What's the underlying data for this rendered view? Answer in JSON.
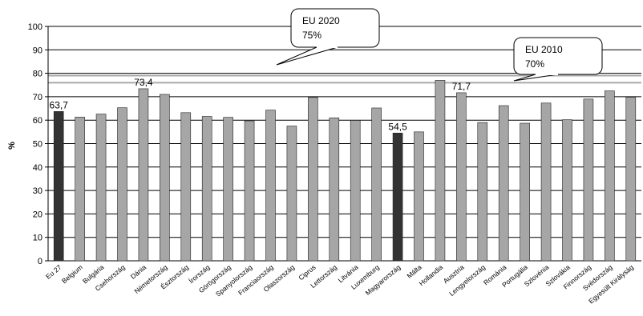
{
  "chart_data": {
    "type": "bar",
    "ylabel": "%",
    "ylim": [
      0,
      100
    ],
    "yticks": [
      0,
      10,
      20,
      30,
      40,
      50,
      60,
      70,
      80,
      90,
      100
    ],
    "grid": "horizontal",
    "categories": [
      "Eu 27",
      "Belgium",
      "Bulgária",
      "Csehország",
      "Dánia",
      "Németország",
      "Észtország",
      "Írország",
      "Görögország",
      "Spanyolország",
      "Franciaország",
      "Olaszország",
      "Ciprus",
      "Lettország",
      "Litvánia",
      "Luxemburg",
      "Magyarország",
      "Málta",
      "Hollandia",
      "Ausztria",
      "Lengyelország",
      "Románia",
      "Portugália",
      "Szlovénia",
      "Szlovákia",
      "Finnország",
      "Svédország",
      "Egyesült Királyság"
    ],
    "values": [
      63.7,
      61.3,
      62.6,
      65.3,
      73.4,
      71.0,
      63.2,
      61.6,
      61.2,
      59.7,
      64.3,
      57.5,
      69.7,
      61.0,
      59.9,
      65.2,
      54.5,
      55.0,
      77.0,
      71.7,
      59.0,
      66.2,
      58.7,
      67.3,
      60.2,
      69.0,
      72.5,
      69.8
    ],
    "highlight_categories": [
      "Eu 27",
      "Magyarország"
    ],
    "data_labels": [
      {
        "category": "Eu 27",
        "text": "63,7"
      },
      {
        "category": "Dánia",
        "text": "73,4"
      },
      {
        "category": "Magyarország",
        "text": "54,5"
      },
      {
        "category": "Ausztria",
        "text": "71,7"
      }
    ],
    "reference_lines": [
      {
        "value": 76,
        "color": "#aaaaaa"
      },
      {
        "value": 79,
        "color": "#aaaaaa"
      }
    ],
    "annotations": [
      {
        "line1": "EU 2020",
        "line2": "75%"
      },
      {
        "line1": "EU 2010",
        "line2": "70%"
      }
    ],
    "colors": {
      "bar": "#a6a6a6",
      "highlight": "#333333",
      "grid": "#000000"
    }
  }
}
